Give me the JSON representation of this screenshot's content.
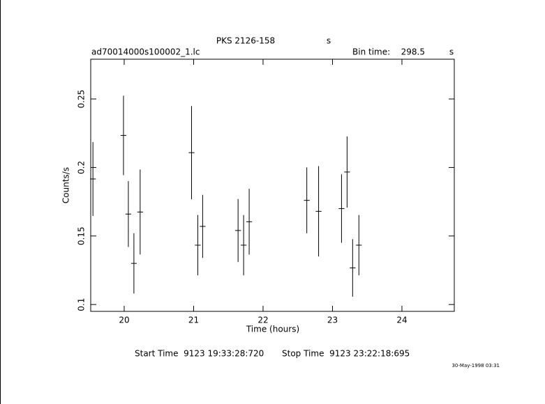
{
  "chart_data": {
    "type": "errorbar",
    "title": "PKS 2126-158",
    "title_unit": "s",
    "subtitle": "ad70014000s100002_1.lc",
    "bin_time_label": "Bin time:",
    "bin_time": 298.5,
    "bin_time_unit": "s",
    "xlabel": "Time (hours)",
    "ylabel": "Counts/s",
    "start_label": "Start Time  9123 19:33:28:720",
    "stop_label": "Stop Time  9123 23:22:18:695",
    "date_stamp": "30-May-1998 03:31",
    "xlim": [
      19.518,
      24.754
    ],
    "ylim": [
      0.095,
      0.279
    ],
    "xticks": [
      20,
      21,
      22,
      23,
      24
    ],
    "yticks": [
      0.1,
      0.15,
      0.2,
      0.25
    ],
    "color": "#000000",
    "x": [
      19.55,
      19.99,
      20.06,
      20.14,
      20.23,
      20.97,
      21.06,
      21.13,
      21.64,
      21.72,
      21.8,
      22.63,
      22.8,
      23.13,
      23.21,
      23.29,
      23.38
    ],
    "values": [
      0.1916,
      0.2234,
      0.166,
      0.13,
      0.1675,
      0.2108,
      0.1433,
      0.157,
      0.154,
      0.1433,
      0.1604,
      0.176,
      0.168,
      0.17,
      0.1967,
      0.1267,
      0.1433
    ],
    "errors": [
      0.027,
      0.029,
      0.024,
      0.022,
      0.031,
      0.034,
      0.022,
      0.023,
      0.023,
      0.022,
      0.024,
      0.024,
      0.033,
      0.025,
      0.026,
      0.021,
      0.022
    ]
  }
}
